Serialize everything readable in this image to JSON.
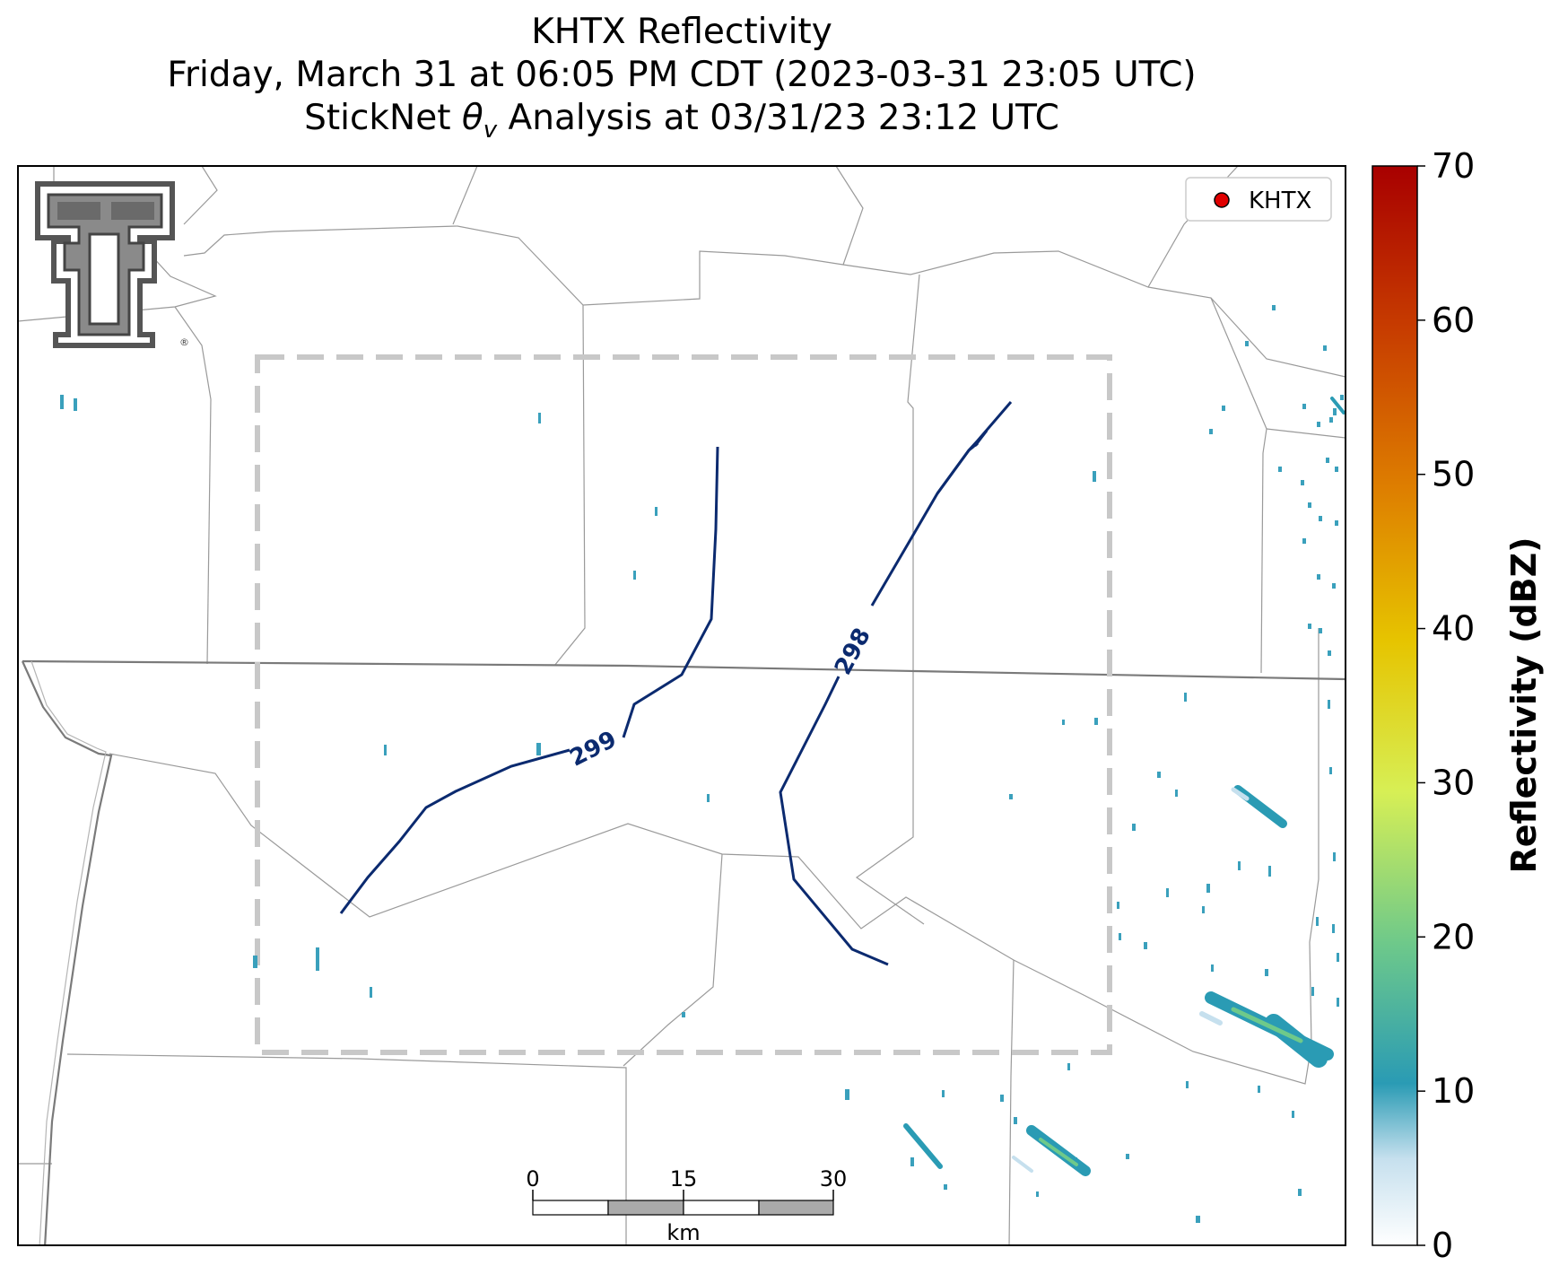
{
  "title": {
    "line1": "KHTX Reflectivity",
    "line2": "Friday, March 31 at 06:05 PM CDT (2023-03-31 23:05 UTC)",
    "line3_prefix": "StickNet ",
    "line3_symbol": "θ",
    "line3_subscript": "v",
    "line3_suffix": " Analysis at 03/31/23 23:12 UTC"
  },
  "legend": {
    "label": "KHTX",
    "marker_color": "#e00000"
  },
  "colorbar": {
    "label": "Reflectivity (dBZ)",
    "min": 0,
    "max": 70,
    "ticks": [
      "0",
      "10",
      "20",
      "30",
      "40",
      "50",
      "60",
      "70"
    ],
    "colors": [
      "#ffffff",
      "#c6e0ee",
      "#2a9bb4",
      "#6ec98a",
      "#d7ef55",
      "#e6c400",
      "#de7f00",
      "#c73c00",
      "#a80000"
    ]
  },
  "contours": [
    {
      "level": "299",
      "label": "299",
      "color": "#0b2a6f"
    },
    {
      "level": "298",
      "label": "298",
      "color": "#0b2a6f"
    }
  ],
  "scale_bar": {
    "ticks": [
      "0",
      "15",
      "30"
    ],
    "unit": "km"
  },
  "logo": {
    "name": "Texas Tech Double T",
    "registered": "®"
  }
}
